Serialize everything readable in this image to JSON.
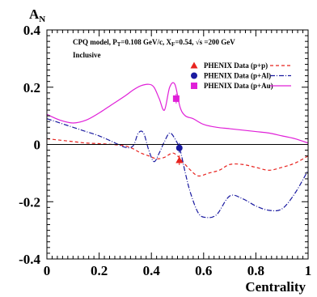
{
  "chart_data": {
    "type": "line",
    "title": "",
    "xlabel": "Centrality",
    "ylabel": "A",
    "ylabel_sub": "N",
    "xlim": [
      0,
      1
    ],
    "ylim": [
      -0.4,
      0.4
    ],
    "x_ticks": [
      0,
      0.2,
      0.4,
      0.6,
      0.8,
      1
    ],
    "x_tick_labels": [
      "0",
      "0.2",
      "0.4",
      "0.6",
      "0.8",
      "1"
    ],
    "y_ticks": [
      -0.4,
      -0.2,
      0,
      0.2,
      0.4
    ],
    "y_tick_labels": [
      "-0.4",
      "-0.2",
      "0",
      "0.2",
      "0.4"
    ],
    "grid": false,
    "legend_position": "top-right",
    "annotation_main": "CPQ model, P",
    "annotation_pt_sub": "T",
    "annotation_pt_val": "=0.108 GeV/c, X",
    "annotation_xf_sub": "F",
    "annotation_xf_val": "=0.54, √s =200 GeV",
    "annotation_line2": "Inclusive",
    "series": [
      {
        "name": "PHENIX Data (p+p)",
        "color": "#e8231f",
        "dash": "4,3",
        "marker": "triangle",
        "x": [
          0,
          0.05,
          0.1,
          0.15,
          0.2,
          0.25,
          0.3,
          0.33,
          0.36,
          0.39,
          0.42,
          0.45,
          0.48,
          0.5,
          0.52,
          0.55,
          0.58,
          0.62,
          0.66,
          0.7,
          0.75,
          0.8,
          0.85,
          0.9,
          0.95,
          1.0
        ],
        "y": [
          0.02,
          0.015,
          0.01,
          0.005,
          0.003,
          0.0,
          -0.005,
          -0.015,
          -0.03,
          -0.04,
          -0.05,
          -0.045,
          -0.03,
          -0.04,
          -0.06,
          -0.09,
          -0.11,
          -0.1,
          -0.09,
          -0.07,
          -0.07,
          -0.08,
          -0.09,
          -0.08,
          -0.065,
          -0.04
        ],
        "points": [
          {
            "x": 0.507,
            "y": -0.055
          }
        ]
      },
      {
        "name": "PHENIX Data (p+Al)",
        "color": "#1a1aa0",
        "dash": "6,2,1,2",
        "marker": "circle",
        "x": [
          0,
          0.05,
          0.1,
          0.15,
          0.2,
          0.25,
          0.3,
          0.33,
          0.35,
          0.37,
          0.39,
          0.41,
          0.43,
          0.45,
          0.47,
          0.49,
          0.51,
          0.53,
          0.55,
          0.58,
          0.61,
          0.65,
          0.7,
          0.75,
          0.8,
          0.85,
          0.9,
          0.95,
          1.0
        ],
        "y": [
          0.09,
          0.075,
          0.06,
          0.045,
          0.03,
          0.01,
          -0.01,
          -0.005,
          0.04,
          0.04,
          -0.02,
          -0.06,
          -0.03,
          0.01,
          0.04,
          0.02,
          -0.02,
          -0.1,
          -0.17,
          -0.24,
          -0.255,
          -0.245,
          -0.18,
          -0.19,
          -0.215,
          -0.23,
          -0.225,
          -0.17,
          -0.09
        ],
        "points": [
          {
            "x": 0.507,
            "y": -0.012
          }
        ]
      },
      {
        "name": "PHENIX Data (p+Au)",
        "color": "#e020d8",
        "dash": "",
        "marker": "square",
        "x": [
          0,
          0.05,
          0.1,
          0.15,
          0.2,
          0.25,
          0.3,
          0.33,
          0.36,
          0.39,
          0.41,
          0.43,
          0.45,
          0.47,
          0.49,
          0.51,
          0.53,
          0.56,
          0.6,
          0.65,
          0.7,
          0.75,
          0.8,
          0.85,
          0.9,
          0.95,
          1.0
        ],
        "y": [
          0.105,
          0.085,
          0.075,
          0.085,
          0.11,
          0.14,
          0.17,
          0.19,
          0.205,
          0.21,
          0.2,
          0.16,
          0.12,
          0.2,
          0.21,
          0.13,
          0.1,
          0.09,
          0.07,
          0.06,
          0.055,
          0.05,
          0.045,
          0.04,
          0.03,
          0.02,
          0.005
        ],
        "points": [
          {
            "x": 0.495,
            "y": 0.16
          }
        ]
      }
    ]
  }
}
